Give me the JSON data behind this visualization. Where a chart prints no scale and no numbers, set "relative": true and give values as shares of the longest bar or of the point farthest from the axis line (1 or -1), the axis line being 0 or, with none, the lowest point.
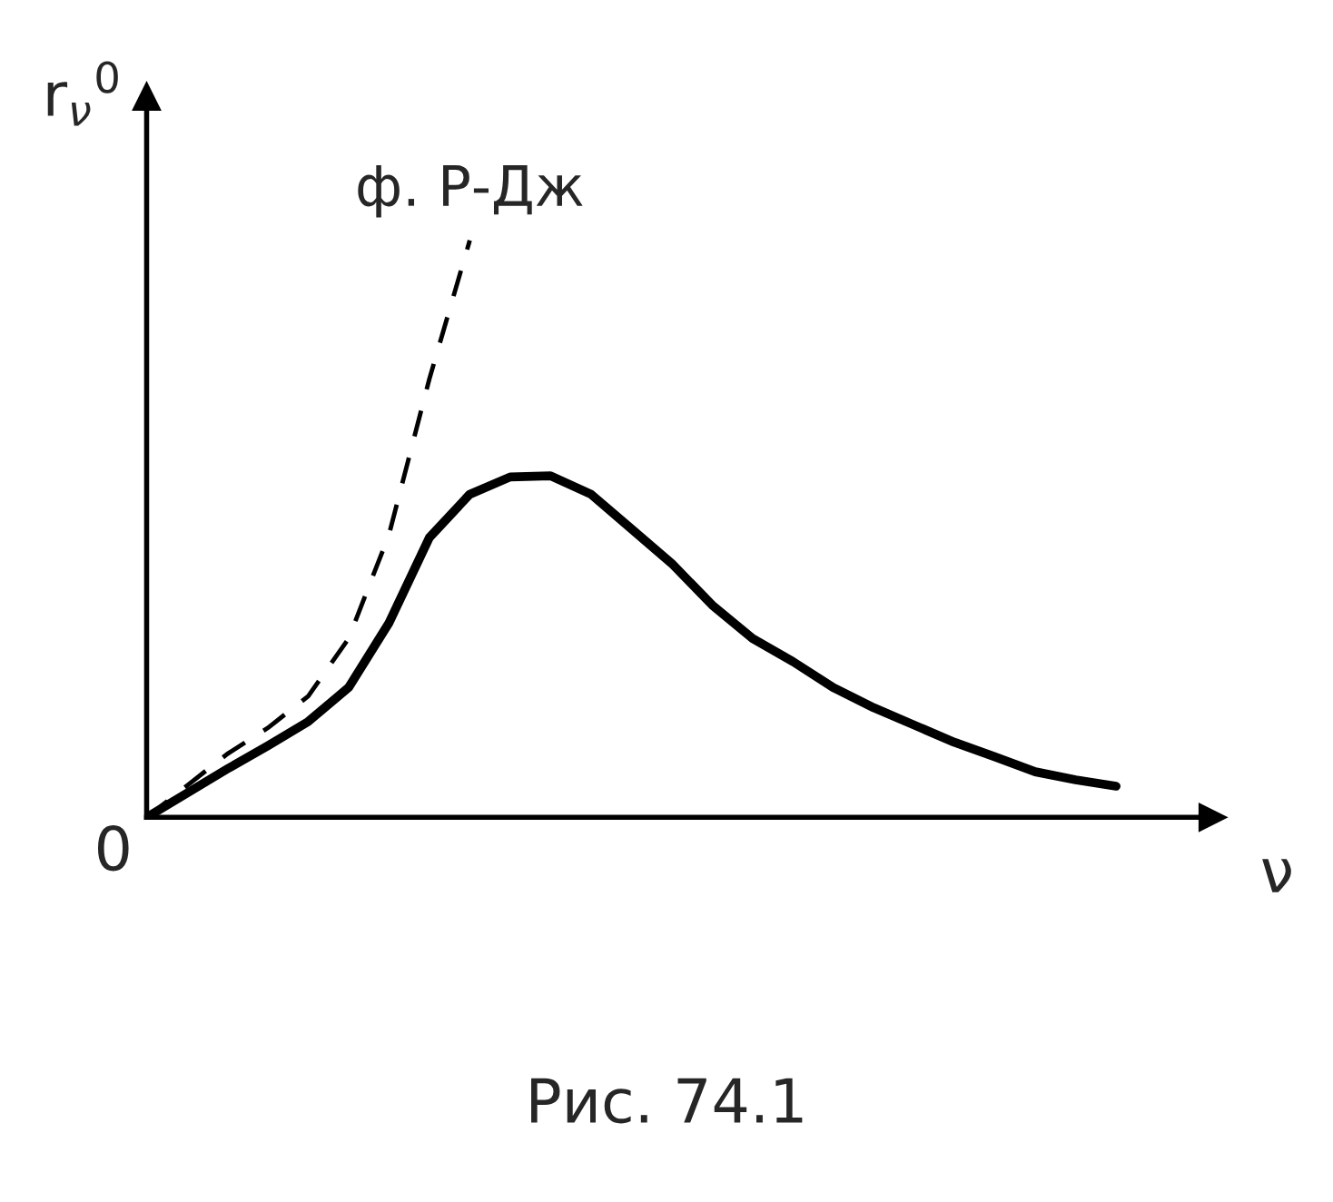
{
  "chart_data": {
    "type": "line",
    "relative": true,
    "xlabel": "ν",
    "ylabel": "r$_{ν}$$^{0}$",
    "categories": [
      null,
      null,
      null,
      null,
      null,
      null,
      null,
      null,
      null,
      null,
      null,
      null,
      null,
      null,
      null,
      null,
      null,
      null,
      null,
      null,
      null,
      null,
      null,
      null,
      null
    ],
    "series": [
      {
        "color": "#000000",
        "line_style": "solid",
        "values": [
          0,
          0.042,
          0.084,
          0.124,
          0.166,
          0.225,
          0.337,
          0.485,
          0.56,
          0.59,
          0.592,
          0.56,
          0.5,
          0.44,
          0.368,
          0.31,
          0.27,
          0.225,
          0.19,
          0.16,
          0.13,
          0.105,
          0.079,
          0.065,
          0.054
        ]
      },
      {
        "name": "ф. Р-Дж",
        "color": "#000000",
        "line_style": "dashed",
        "values": [
          0,
          0.055,
          0.11,
          0.155,
          0.21,
          0.31,
          0.49,
          0.76,
          1.0,
          null,
          null,
          null,
          null,
          null,
          null,
          null,
          null,
          null,
          null,
          null,
          null,
          null,
          null,
          null,
          null
        ]
      }
    ],
    "annotations": [
      "0",
      "Рис. 74.1"
    ]
  }
}
